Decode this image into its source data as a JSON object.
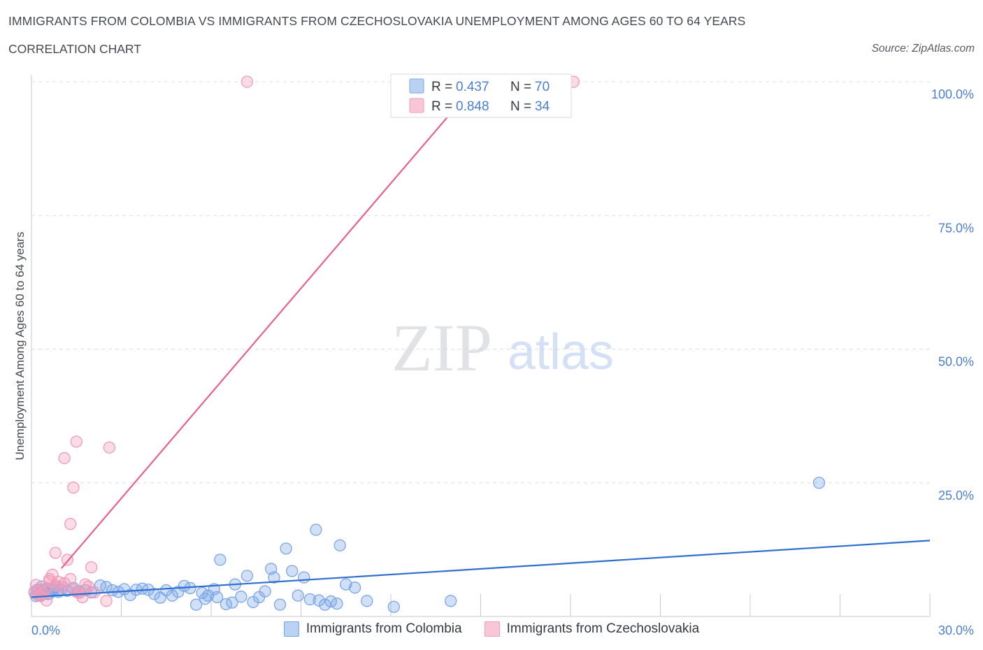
{
  "header": {
    "title": "IMMIGRANTS FROM COLOMBIA VS IMMIGRANTS FROM CZECHOSLOVAKIA UNEMPLOYMENT AMONG AGES 60 TO 64 YEARS",
    "subtitle": "CORRELATION CHART",
    "source": "Source: ZipAtlas.com"
  },
  "watermark": {
    "zip": "ZIP",
    "atlas": "atlas"
  },
  "colors": {
    "blue": "#7aa6e8",
    "blue_line": "#2f6fce",
    "pink": "#f29ab8",
    "pink_line": "#e8608e",
    "grid": "#dcdfe4",
    "tick": "#4a7fd0"
  },
  "chart_data": {
    "type": "scatter",
    "title": "IMMIGRANTS FROM COLOMBIA VS IMMIGRANTS FROM CZECHOSLOVAKIA UNEMPLOYMENT AMONG AGES 60 TO 64 YEARS",
    "xlabel": "",
    "ylabel": "Unemployment Among Ages 60 to 64 years",
    "xlim": [
      0,
      30
    ],
    "ylim": [
      0,
      100
    ],
    "x_tick_labels": [
      "0.0%",
      "30.0%"
    ],
    "y_ticks": [
      25,
      50,
      75,
      100
    ],
    "y_tick_labels": [
      "25.0%",
      "50.0%",
      "75.0%",
      "100.0%"
    ],
    "legend_stats": [
      {
        "r_label": "R =",
        "r_value": "0.437",
        "n_label": "N =",
        "n_value": "70"
      },
      {
        "r_label": "R =",
        "r_value": "0.848",
        "n_label": "N =",
        "n_value": "34"
      }
    ],
    "series": [
      {
        "name": "Immigrants from Colombia",
        "color": "#7aa6e8",
        "trend": {
          "x": [
            0,
            30
          ],
          "y": [
            3.6,
            14.2
          ]
        },
        "points": [
          [
            0.1,
            4.5
          ],
          [
            0.2,
            5.0
          ],
          [
            0.3,
            4.0
          ],
          [
            0.4,
            4.8
          ],
          [
            0.5,
            5.2
          ],
          [
            0.6,
            4.3
          ],
          [
            0.7,
            4.9
          ],
          [
            0.8,
            5.5
          ],
          [
            0.9,
            4.6
          ],
          [
            1.0,
            5.0
          ],
          [
            1.2,
            4.8
          ],
          [
            1.4,
            5.3
          ],
          [
            1.6,
            4.7
          ],
          [
            1.8,
            4.9
          ],
          [
            2.0,
            4.5
          ],
          [
            2.3,
            5.8
          ],
          [
            2.5,
            5.5
          ],
          [
            2.7,
            4.9
          ],
          [
            2.9,
            4.6
          ],
          [
            3.1,
            5.1
          ],
          [
            3.3,
            4.0
          ],
          [
            3.5,
            5.0
          ],
          [
            3.7,
            5.2
          ],
          [
            3.9,
            5.0
          ],
          [
            4.1,
            4.2
          ],
          [
            4.3,
            3.5
          ],
          [
            4.5,
            4.9
          ],
          [
            4.7,
            3.9
          ],
          [
            4.9,
            4.6
          ],
          [
            5.1,
            5.7
          ],
          [
            5.3,
            5.3
          ],
          [
            5.5,
            2.2
          ],
          [
            5.7,
            4.4
          ],
          [
            5.9,
            3.9
          ],
          [
            6.1,
            5.1
          ],
          [
            6.2,
            3.6
          ],
          [
            6.3,
            10.6
          ],
          [
            6.5,
            2.3
          ],
          [
            6.7,
            2.6
          ],
          [
            6.8,
            6.0
          ],
          [
            7.0,
            3.7
          ],
          [
            7.2,
            7.6
          ],
          [
            7.4,
            2.7
          ],
          [
            7.6,
            3.6
          ],
          [
            7.8,
            4.7
          ],
          [
            8.0,
            8.9
          ],
          [
            8.1,
            7.3
          ],
          [
            8.3,
            2.2
          ],
          [
            8.5,
            12.7
          ],
          [
            8.7,
            8.5
          ],
          [
            8.9,
            3.9
          ],
          [
            9.1,
            7.3
          ],
          [
            9.3,
            3.2
          ],
          [
            9.5,
            16.2
          ],
          [
            9.6,
            3.0
          ],
          [
            9.8,
            2.2
          ],
          [
            10.0,
            2.8
          ],
          [
            10.2,
            2.4
          ],
          [
            10.3,
            13.3
          ],
          [
            10.5,
            6.0
          ],
          [
            10.8,
            5.4
          ],
          [
            11.2,
            2.9
          ],
          [
            12.1,
            1.8
          ],
          [
            14.0,
            2.9
          ],
          [
            26.3,
            25.0
          ],
          [
            0.15,
            3.8
          ],
          [
            0.35,
            5.6
          ],
          [
            0.55,
            4.2
          ],
          [
            0.75,
            5.1
          ],
          [
            5.8,
            3.3
          ]
        ]
      },
      {
        "name": "Immigrants from Czechoslovakia",
        "color": "#f29ab8",
        "trend": {
          "x": [
            1.0,
            14.9
          ],
          "y": [
            9.0,
            100.0
          ]
        },
        "points": [
          [
            0.1,
            4.6
          ],
          [
            0.2,
            4.0
          ],
          [
            0.3,
            5.0
          ],
          [
            0.4,
            4.3
          ],
          [
            0.5,
            5.3
          ],
          [
            0.6,
            7.0
          ],
          [
            0.7,
            7.8
          ],
          [
            0.8,
            5.8
          ],
          [
            0.9,
            6.5
          ],
          [
            1.0,
            5.5
          ],
          [
            1.1,
            6.2
          ],
          [
            1.2,
            10.6
          ],
          [
            1.3,
            7.0
          ],
          [
            1.4,
            5.0
          ],
          [
            1.5,
            4.6
          ],
          [
            1.7,
            3.6
          ],
          [
            1.8,
            6.0
          ],
          [
            2.0,
            9.2
          ],
          [
            2.1,
            4.5
          ],
          [
            2.5,
            2.9
          ],
          [
            2.6,
            31.6
          ],
          [
            1.5,
            32.7
          ],
          [
            1.1,
            29.6
          ],
          [
            1.4,
            24.1
          ],
          [
            1.3,
            17.3
          ],
          [
            0.8,
            11.9
          ],
          [
            0.5,
            3.0
          ],
          [
            0.6,
            6.6
          ],
          [
            0.3,
            3.8
          ],
          [
            0.15,
            5.9
          ],
          [
            7.2,
            100.0
          ],
          [
            18.1,
            100.0
          ],
          [
            1.6,
            4.4
          ],
          [
            1.9,
            5.6
          ]
        ]
      }
    ]
  },
  "bottom_legend": {
    "items": [
      "Immigrants from Colombia",
      "Immigrants from Czechoslovakia"
    ]
  }
}
